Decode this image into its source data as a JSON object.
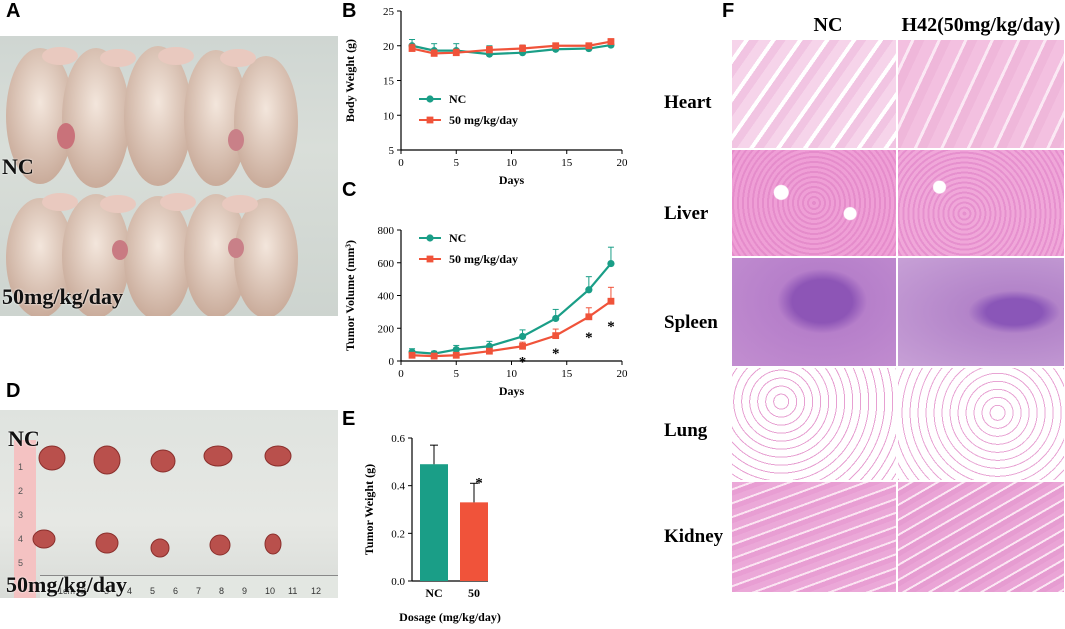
{
  "panels": {
    "A": "A",
    "B": "B",
    "C": "C",
    "D": "D",
    "E": "E",
    "F": "F"
  },
  "panel_a": {
    "top_label": "NC",
    "bottom_label": "50mg/kg/day"
  },
  "panel_d": {
    "top_label": "NC",
    "bottom_label": "50mg/kg/day",
    "ruler_numbers": [
      "1cm",
      "2",
      "3",
      "4",
      "5",
      "6",
      "7",
      "8",
      "9",
      "10",
      "11",
      "12"
    ],
    "ruler_side_numbers": [
      "1",
      "2",
      "3",
      "4",
      "5"
    ]
  },
  "panel_f": {
    "col_headers": [
      "NC",
      "H42(50mg/kg/day)"
    ],
    "rows": [
      "Heart",
      "Liver",
      "Spleen",
      "Lung",
      "Kidney"
    ]
  },
  "colors": {
    "nc": "#1a9e87",
    "treated": "#f0533a",
    "heart": "#f3bfe0",
    "liver": "#e896cf",
    "spleen": "#b47cc6",
    "lung": "#fbeef6",
    "kidney": "#eba8d8"
  },
  "chart_data": [
    {
      "id": "B",
      "type": "line",
      "title": "",
      "xlabel": "Days",
      "ylabel": "Body Weight (g)",
      "xlim": [
        0,
        20
      ],
      "ylim": [
        5,
        25
      ],
      "xticks": [
        "0",
        "5",
        "10",
        "15",
        "20"
      ],
      "yticks": [
        "5",
        "10",
        "15",
        "20",
        "25"
      ],
      "legend_position": "center-left",
      "series": [
        {
          "name": "NC",
          "color": "#1a9e87",
          "x": [
            1,
            3,
            5,
            8,
            11,
            14,
            17,
            19
          ],
          "y": [
            20.0,
            19.3,
            19.3,
            18.8,
            19.0,
            19.5,
            19.6,
            20.1
          ],
          "err": [
            0.9,
            1.0,
            1.0,
            1.2,
            1.1,
            0.7,
            0.6,
            0.6
          ]
        },
        {
          "name": "50 mg/kg/day",
          "color": "#f0533a",
          "x": [
            1,
            3,
            5,
            8,
            11,
            14,
            17,
            19
          ],
          "y": [
            19.6,
            18.9,
            19.0,
            19.4,
            19.6,
            20.0,
            20.0,
            20.6
          ],
          "err": [
            0.6,
            0.5,
            0.5,
            0.5,
            0.5,
            0.4,
            0.4,
            0.4
          ]
        }
      ]
    },
    {
      "id": "C",
      "type": "line",
      "title": "",
      "xlabel": "Days",
      "ylabel": "Tumor Volume (mm³)",
      "xlim": [
        0,
        20
      ],
      "ylim": [
        0,
        800
      ],
      "xticks": [
        "0",
        "5",
        "10",
        "15",
        "20"
      ],
      "yticks": [
        "0",
        "200",
        "400",
        "600",
        "800"
      ],
      "legend_position": "top-left",
      "significance": [
        {
          "x": 11,
          "label": "*"
        },
        {
          "x": 14,
          "label": "*"
        },
        {
          "x": 17,
          "label": "*"
        },
        {
          "x": 19,
          "label": "*"
        }
      ],
      "series": [
        {
          "name": "NC",
          "color": "#1a9e87",
          "x": [
            1,
            3,
            5,
            8,
            11,
            14,
            17,
            19
          ],
          "y": [
            55,
            45,
            70,
            90,
            150,
            260,
            435,
            595
          ],
          "err": [
            20,
            15,
            25,
            30,
            40,
            55,
            80,
            100
          ]
        },
        {
          "name": "50 mg/kg/day",
          "color": "#f0533a",
          "x": [
            1,
            3,
            5,
            8,
            11,
            14,
            17,
            19
          ],
          "y": [
            35,
            30,
            35,
            60,
            90,
            155,
            270,
            365
          ],
          "err": [
            10,
            10,
            10,
            15,
            25,
            40,
            55,
            85
          ]
        }
      ]
    },
    {
      "id": "E",
      "type": "bar",
      "title": "",
      "xlabel": "Dosage (mg/kg/day)",
      "ylabel": "Tumor Weight (g)",
      "ylim": [
        0,
        0.6
      ],
      "yticks": [
        "0.0",
        "0.2",
        "0.4",
        "0.6"
      ],
      "categories": [
        "NC",
        "50"
      ],
      "values": [
        0.49,
        0.33
      ],
      "err": [
        0.08,
        0.08
      ],
      "colors": [
        "#1a9e87",
        "#f0533a"
      ],
      "significance": [
        {
          "index": 1,
          "label": "*"
        }
      ]
    }
  ]
}
